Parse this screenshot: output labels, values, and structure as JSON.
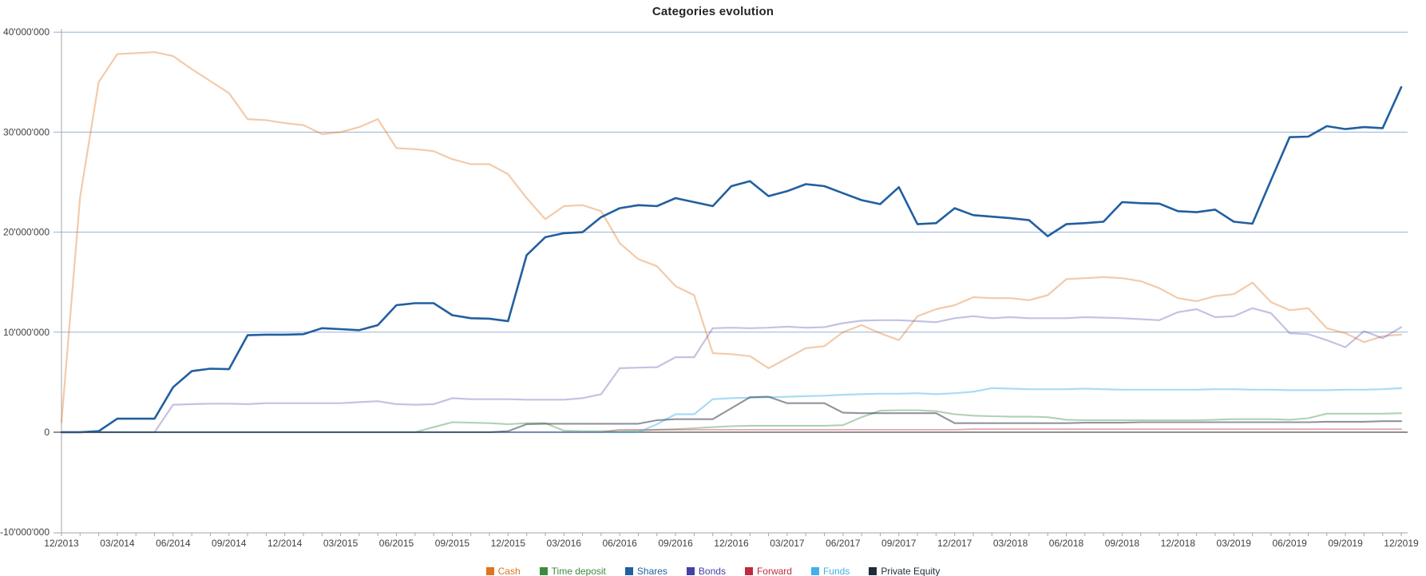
{
  "title": "Categories evolution",
  "chart_data": {
    "type": "line",
    "title": "Categories evolution",
    "xlabel": "",
    "ylabel": "",
    "ylim": [
      -10000000,
      40000000
    ],
    "grid": "horizontal-only",
    "legend_position": "bottom",
    "unit_multiplier": 1000000,
    "y_ticks": [
      {
        "label": "40'000'000",
        "value_millions": 40
      },
      {
        "label": "30'000'000",
        "value_millions": 30
      },
      {
        "label": "20'000'000",
        "value_millions": 20
      },
      {
        "label": "10'000'000",
        "value_millions": 10
      },
      {
        "label": "0",
        "value_millions": 0
      },
      {
        "label": "-10'000'000",
        "value_millions": -10
      }
    ],
    "y_gridlines_millions": [
      40,
      30,
      20,
      10
    ],
    "x_quarter_tick_labels": [
      "12/2013",
      "03/2014",
      "06/2014",
      "09/2014",
      "12/2014",
      "03/2015",
      "06/2015",
      "09/2015",
      "12/2015",
      "03/2016",
      "06/2016",
      "09/2016",
      "12/2016",
      "03/2017",
      "06/2017",
      "09/2017",
      "12/2017",
      "03/2018",
      "06/2018",
      "09/2018",
      "12/2018",
      "03/2019",
      "06/2019",
      "09/2019",
      "12/2019"
    ],
    "x_months": [
      "12/2013",
      "01/2014",
      "02/2014",
      "03/2014",
      "04/2014",
      "05/2014",
      "06/2014",
      "07/2014",
      "08/2014",
      "09/2014",
      "10/2014",
      "11/2014",
      "12/2014",
      "01/2015",
      "02/2015",
      "03/2015",
      "04/2015",
      "05/2015",
      "06/2015",
      "07/2015",
      "08/2015",
      "09/2015",
      "10/2015",
      "11/2015",
      "12/2015",
      "01/2016",
      "02/2016",
      "03/2016",
      "04/2016",
      "05/2016",
      "06/2016",
      "07/2016",
      "08/2016",
      "09/2016",
      "10/2016",
      "11/2016",
      "12/2016",
      "01/2017",
      "02/2017",
      "03/2017",
      "04/2017",
      "05/2017",
      "06/2017",
      "07/2017",
      "08/2017",
      "09/2017",
      "10/2017",
      "11/2017",
      "12/2017",
      "01/2018",
      "02/2018",
      "03/2018",
      "04/2018",
      "05/2018",
      "06/2018",
      "07/2018",
      "08/2018",
      "09/2018",
      "10/2018",
      "11/2018",
      "12/2018",
      "01/2019",
      "02/2019",
      "03/2019",
      "04/2019",
      "05/2019",
      "06/2019",
      "07/2019",
      "08/2019",
      "09/2019",
      "10/2019",
      "11/2019",
      "12/2019"
    ],
    "series": [
      {
        "name": "Cash",
        "color": "#E0731D",
        "opacity": 0.38,
        "stroke_width": 2.2,
        "values_millions": [
          1.0,
          23.5,
          35.0,
          37.8,
          37.9,
          38.0,
          37.6,
          36.3,
          35.1,
          33.9,
          31.3,
          31.2,
          30.9,
          30.7,
          29.8,
          30.0,
          30.5,
          31.3,
          28.4,
          28.3,
          28.1,
          27.3,
          26.8,
          26.8,
          25.8,
          23.4,
          21.3,
          22.6,
          22.7,
          22.1,
          18.9,
          17.3,
          16.6,
          14.6,
          13.7,
          7.9,
          7.8,
          7.6,
          6.4,
          7.4,
          8.4,
          8.6,
          10.0,
          10.7,
          9.9,
          9.2,
          11.6,
          12.3,
          12.7,
          13.5,
          13.4,
          13.4,
          13.2,
          13.7,
          15.3,
          15.4,
          15.5,
          15.4,
          15.1,
          14.4,
          13.4,
          13.1,
          13.6,
          13.8,
          14.95,
          13.0,
          12.2,
          12.4,
          10.4,
          9.9,
          9.0,
          9.6,
          9.75
        ]
      },
      {
        "name": "Time deposit",
        "color": "#3E8A41",
        "opacity": 0.4,
        "stroke_width": 2.1,
        "values_millions": [
          0,
          0,
          0,
          0,
          0,
          0,
          0,
          0,
          0,
          0,
          0,
          0,
          0,
          0,
          0,
          0,
          0,
          0,
          0,
          0,
          0.5,
          1.0,
          0.95,
          0.9,
          0.8,
          0.9,
          0.9,
          0.15,
          0.1,
          0.1,
          0.1,
          0.15,
          0.25,
          0.3,
          0.4,
          0.5,
          0.6,
          0.65,
          0.65,
          0.65,
          0.65,
          0.65,
          0.7,
          1.5,
          2.15,
          2.2,
          2.2,
          2.1,
          1.8,
          1.65,
          1.6,
          1.55,
          1.55,
          1.5,
          1.25,
          1.2,
          1.2,
          1.2,
          1.2,
          1.2,
          1.2,
          1.2,
          1.25,
          1.3,
          1.3,
          1.3,
          1.25,
          1.4,
          1.85,
          1.85,
          1.85,
          1.85,
          1.9
        ]
      },
      {
        "name": "Shares",
        "color": "#215FA0",
        "opacity": 1.0,
        "stroke_width": 2.6,
        "values_millions": [
          0,
          0,
          0.1,
          1.35,
          1.35,
          1.35,
          4.5,
          6.1,
          6.35,
          6.3,
          9.7,
          9.75,
          9.75,
          9.8,
          10.4,
          10.3,
          10.2,
          10.7,
          12.7,
          12.9,
          12.9,
          11.7,
          11.4,
          11.35,
          11.1,
          17.7,
          19.5,
          19.9,
          20.0,
          21.5,
          22.4,
          22.7,
          22.6,
          23.4,
          23.0,
          22.6,
          24.6,
          25.1,
          23.6,
          24.1,
          24.8,
          24.6,
          23.9,
          23.2,
          22.8,
          24.5,
          20.8,
          20.9,
          22.4,
          21.7,
          21.55,
          21.4,
          21.2,
          19.6,
          20.8,
          20.9,
          21.05,
          23.0,
          22.9,
          22.85,
          22.1,
          22.0,
          22.25,
          21.05,
          20.85,
          25.2,
          29.5,
          29.55,
          30.6,
          30.3,
          30.5,
          30.4,
          34.5
        ]
      },
      {
        "name": "Bonds",
        "color": "#4340A8",
        "opacity": 0.32,
        "stroke_width": 2.2,
        "values_millions": [
          0,
          0,
          0,
          0,
          0,
          0,
          2.75,
          2.8,
          2.85,
          2.85,
          2.8,
          2.9,
          2.9,
          2.9,
          2.9,
          2.9,
          3.0,
          3.1,
          2.8,
          2.75,
          2.8,
          3.4,
          3.3,
          3.3,
          3.3,
          3.25,
          3.25,
          3.25,
          3.4,
          3.8,
          6.4,
          6.45,
          6.5,
          7.5,
          7.5,
          10.4,
          10.45,
          10.4,
          10.45,
          10.55,
          10.45,
          10.5,
          10.9,
          11.15,
          11.2,
          11.2,
          11.1,
          11.0,
          11.4,
          11.6,
          11.4,
          11.5,
          11.4,
          11.4,
          11.4,
          11.5,
          11.45,
          11.4,
          11.3,
          11.2,
          12.0,
          12.3,
          11.5,
          11.6,
          12.4,
          11.9,
          9.9,
          9.8,
          9.2,
          8.5,
          10.1,
          9.4,
          10.5
        ]
      },
      {
        "name": "Forward",
        "color": "#C02B3C",
        "opacity": 0.42,
        "stroke_width": 1.8,
        "values_millions": [
          0,
          0,
          0,
          0,
          0,
          0,
          0,
          0,
          0,
          0,
          0,
          0,
          0,
          0,
          0,
          0,
          0,
          0,
          0,
          0,
          0,
          0,
          0,
          0,
          0,
          0,
          0,
          0,
          0,
          0,
          0.25,
          0.25,
          0.25,
          0.25,
          0.25,
          0.25,
          0.25,
          0.25,
          0.25,
          0.25,
          0.25,
          0.25,
          0.25,
          0.25,
          0.25,
          0.25,
          0.25,
          0.25,
          0.25,
          0.3,
          0.3,
          0.3,
          0.3,
          0.3,
          0.3,
          0.3,
          0.3,
          0.3,
          0.3,
          0.3,
          0.3,
          0.3,
          0.3,
          0.3,
          0.3,
          0.3,
          0.3,
          0.3,
          0.3,
          0.3,
          0.3,
          0.3,
          0.3
        ]
      },
      {
        "name": "Funds",
        "color": "#41B0EA",
        "opacity": 0.45,
        "stroke_width": 2.2,
        "values_millions": [
          0,
          0,
          0,
          0,
          0,
          0,
          0,
          0,
          0,
          0,
          0,
          0,
          0,
          0,
          0,
          0,
          0,
          0,
          0,
          0,
          0,
          0,
          0,
          0,
          0,
          0,
          0,
          0,
          0,
          0,
          0,
          0,
          0.8,
          1.8,
          1.8,
          3.3,
          3.4,
          3.45,
          3.5,
          3.55,
          3.6,
          3.65,
          3.75,
          3.8,
          3.85,
          3.85,
          3.9,
          3.8,
          3.9,
          4.05,
          4.4,
          4.35,
          4.3,
          4.3,
          4.3,
          4.35,
          4.3,
          4.25,
          4.25,
          4.25,
          4.25,
          4.25,
          4.3,
          4.3,
          4.25,
          4.25,
          4.2,
          4.2,
          4.2,
          4.25,
          4.25,
          4.3,
          4.4
        ]
      },
      {
        "name": "Private Equity",
        "color": "#1F2B3A",
        "opacity": 0.5,
        "stroke_width": 2.1,
        "values_millions": [
          0,
          0,
          0,
          0,
          0,
          0,
          0,
          0,
          0,
          0,
          0,
          0,
          0,
          0,
          0,
          0,
          0,
          0,
          0,
          0,
          0,
          0,
          0,
          0,
          0.1,
          0.8,
          0.85,
          0.85,
          0.85,
          0.85,
          0.85,
          0.85,
          1.2,
          1.3,
          1.3,
          1.3,
          2.4,
          3.5,
          3.55,
          2.9,
          2.9,
          2.9,
          1.95,
          1.9,
          1.9,
          1.9,
          1.9,
          1.9,
          0.9,
          0.9,
          0.9,
          0.9,
          0.9,
          0.9,
          0.9,
          0.95,
          0.95,
          0.95,
          1.0,
          1.0,
          1.0,
          1.0,
          1.0,
          1.0,
          1.0,
          1.0,
          1.0,
          1.0,
          1.05,
          1.05,
          1.05,
          1.1,
          1.1
        ]
      }
    ]
  },
  "legend": {
    "items": [
      {
        "label": "Cash",
        "color": "#E0731D"
      },
      {
        "label": "Time deposit",
        "color": "#3E8A41"
      },
      {
        "label": "Shares",
        "color": "#215FA0"
      },
      {
        "label": "Bonds",
        "color": "#4340A8"
      },
      {
        "label": "Forward",
        "color": "#C02B3C"
      },
      {
        "label": "Funds",
        "color": "#41B0EA"
      },
      {
        "label": "Private Equity",
        "color": "#1F2B3A"
      }
    ]
  },
  "colors": {
    "gridline": "#95B3D7",
    "zero_axis": "#4B4F54",
    "outer_axis": "#A6A6A6",
    "axis_text": "#404040"
  }
}
